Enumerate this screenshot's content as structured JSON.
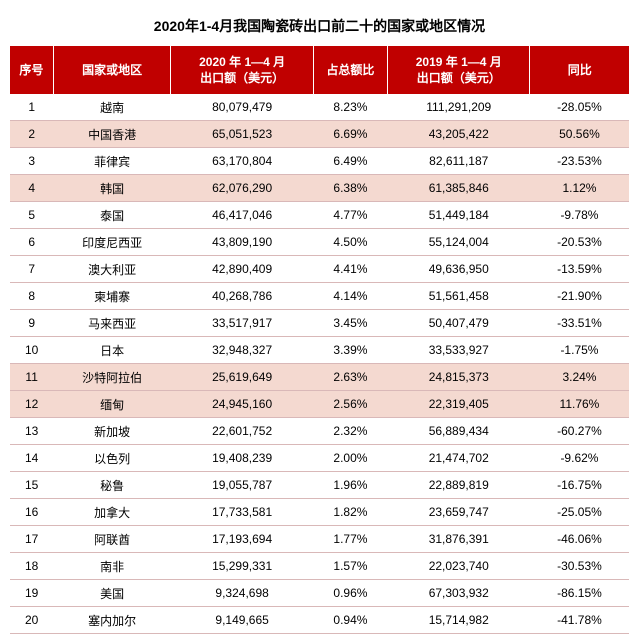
{
  "title": "2020年1-4月我国陶瓷砖出口前二十的国家或地区情况",
  "title_fontsize": 14,
  "table": {
    "type": "table",
    "header_bg": "#c00000",
    "header_fg": "#ffffff",
    "row_border_color": "#d9b8b8",
    "row_bg_default": "#ffffff",
    "row_bg_highlight": "#f4d9d0",
    "cell_fontsize": 12,
    "header_fontsize": 12,
    "columns": [
      "序号",
      "国家或地区",
      "2020 年 1—4 月\n出口额（美元）",
      "占总额比",
      "2019 年 1—4 月\n出口额（美元）",
      "同比"
    ],
    "highlight_rows": [
      1,
      3,
      10,
      11
    ],
    "rows": [
      [
        "1",
        "越南",
        "80,079,479",
        "8.23%",
        "111,291,209",
        "-28.05%"
      ],
      [
        "2",
        "中国香港",
        "65,051,523",
        "6.69%",
        "43,205,422",
        "50.56%"
      ],
      [
        "3",
        "菲律宾",
        "63,170,804",
        "6.49%",
        "82,611,187",
        "-23.53%"
      ],
      [
        "4",
        "韩国",
        "62,076,290",
        "6.38%",
        "61,385,846",
        "1.12%"
      ],
      [
        "5",
        "泰国",
        "46,417,046",
        "4.77%",
        "51,449,184",
        "-9.78%"
      ],
      [
        "6",
        "印度尼西亚",
        "43,809,190",
        "4.50%",
        "55,124,004",
        "-20.53%"
      ],
      [
        "7",
        "澳大利亚",
        "42,890,409",
        "4.41%",
        "49,636,950",
        "-13.59%"
      ],
      [
        "8",
        "柬埔寨",
        "40,268,786",
        "4.14%",
        "51,561,458",
        "-21.90%"
      ],
      [
        "9",
        "马来西亚",
        "33,517,917",
        "3.45%",
        "50,407,479",
        "-33.51%"
      ],
      [
        "10",
        "日本",
        "32,948,327",
        "3.39%",
        "33,533,927",
        "-1.75%"
      ],
      [
        "11",
        "沙特阿拉伯",
        "25,619,649",
        "2.63%",
        "24,815,373",
        "3.24%"
      ],
      [
        "12",
        "缅甸",
        "24,945,160",
        "2.56%",
        "22,319,405",
        "11.76%"
      ],
      [
        "13",
        "新加坡",
        "22,601,752",
        "2.32%",
        "56,889,434",
        "-60.27%"
      ],
      [
        "14",
        "以色列",
        "19,408,239",
        "2.00%",
        "21,474,702",
        "-9.62%"
      ],
      [
        "15",
        "秘鲁",
        "19,055,787",
        "1.96%",
        "22,889,819",
        "-16.75%"
      ],
      [
        "16",
        "加拿大",
        "17,733,581",
        "1.82%",
        "23,659,747",
        "-25.05%"
      ],
      [
        "17",
        "阿联酋",
        "17,193,694",
        "1.77%",
        "31,876,391",
        "-46.06%"
      ],
      [
        "18",
        "南非",
        "15,299,331",
        "1.57%",
        "22,023,740",
        "-30.53%"
      ],
      [
        "19",
        "美国",
        "9,324,698",
        "0.96%",
        "67,303,932",
        "-86.15%"
      ],
      [
        "20",
        "塞内加尔",
        "9,149,665",
        "0.94%",
        "15,714,982",
        "-41.78%"
      ]
    ]
  }
}
